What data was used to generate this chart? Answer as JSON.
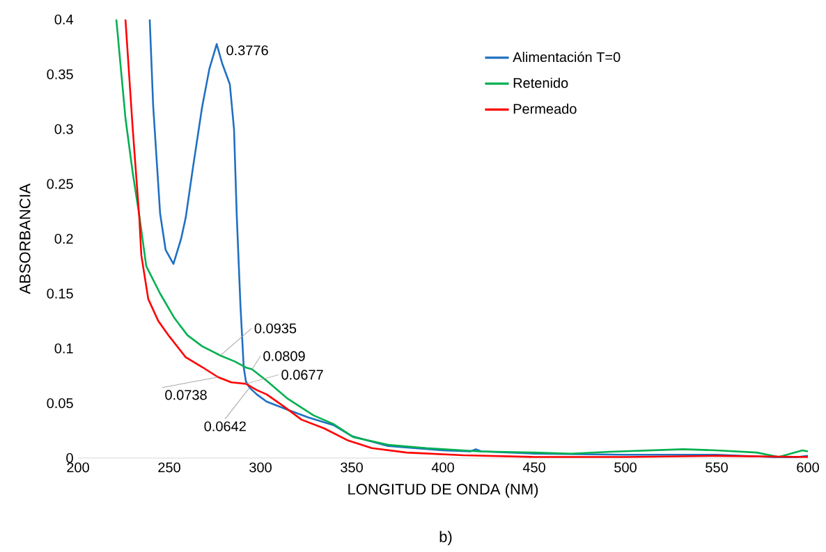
{
  "chart_data": {
    "type": "line",
    "xlabel": "LONGITUD DE ONDA (NM)",
    "ylabel": "ABSORBANCIA",
    "xlim": [
      200,
      600
    ],
    "xticks": [
      200,
      250,
      300,
      350,
      400,
      450,
      500,
      550,
      600
    ],
    "ylim": [
      0,
      0.4
    ],
    "yticks": [
      0,
      0.05,
      0.1,
      0.15,
      0.2,
      0.25,
      0.3,
      0.35,
      0.4
    ],
    "grid": false,
    "legend": "top right",
    "marker": "none",
    "line_style": "solid",
    "series": [
      {
        "name": "Alimentación T=0",
        "color": "#1f70c1",
        "x": [
          239.3,
          241.2,
          245,
          248,
          252.3,
          256.5,
          259,
          263,
          268,
          272,
          276,
          279,
          283.2,
          285.5,
          287,
          289,
          290.8,
          292,
          294,
          298,
          303.4,
          315,
          326.3,
          340,
          350,
          370,
          400,
          415,
          418,
          421,
          450,
          500,
          550,
          580,
          590,
          600
        ],
        "values": [
          0.4,
          0.321,
          0.223,
          0.19,
          0.177,
          0.2,
          0.219,
          0.265,
          0.32,
          0.355,
          0.3776,
          0.36,
          0.341,
          0.3,
          0.221,
          0.14,
          0.083,
          0.07,
          0.0642,
          0.058,
          0.0514,
          0.044,
          0.037,
          0.03,
          0.02,
          0.011,
          0.007,
          0.006,
          0.008,
          0.006,
          0.004,
          0.003,
          0.003,
          0.001,
          0.0,
          0.002
        ]
      },
      {
        "name": "Retenido",
        "color": "#00b050",
        "x": [
          221,
          226,
          230,
          233.6,
          237.4,
          245,
          252.7,
          260,
          268,
          278,
          286,
          292,
          295.4,
          303.4,
          315,
          329,
          340,
          351,
          370,
          391,
          420,
          450,
          470,
          491.6,
          531.7,
          550,
          572,
          584,
          597,
          600
        ],
        "values": [
          0.4,
          0.31,
          0.26,
          0.221,
          0.175,
          0.15,
          0.128,
          0.112,
          0.102,
          0.0935,
          0.088,
          0.0826,
          0.0809,
          0.0705,
          0.054,
          0.039,
          0.031,
          0.019,
          0.012,
          0.009,
          0.006,
          0.005,
          0.004,
          0.0057,
          0.008,
          0.007,
          0.005,
          0.001,
          0.007,
          0.006
        ]
      },
      {
        "name": "Permeado",
        "color": "#ff0000",
        "x": [
          226,
          230,
          233.6,
          234.7,
          238.5,
          244,
          250,
          259,
          268,
          276.7,
          284,
          292,
          298,
          303.4,
          312,
          322.5,
          335,
          348,
          361,
          380,
          411,
          450,
          500,
          550,
          600
        ],
        "values": [
          0.4,
          0.3,
          0.219,
          0.185,
          0.145,
          0.125,
          0.111,
          0.092,
          0.083,
          0.0738,
          0.069,
          0.0677,
          0.062,
          0.058,
          0.048,
          0.035,
          0.027,
          0.016,
          0.009,
          0.005,
          0.0025,
          0.001,
          0.001,
          0.002,
          0.001
        ]
      }
    ],
    "annotations": [
      {
        "text": "0.3776",
        "x": 276,
        "y": 0.3776
      },
      {
        "text": "0.0935",
        "x": 278,
        "y": 0.0935
      },
      {
        "text": "0.0809",
        "x": 295.4,
        "y": 0.0809
      },
      {
        "text": "0.0677",
        "x": 292,
        "y": 0.0677
      },
      {
        "text": "0.0738",
        "x": 276.7,
        "y": 0.0738
      },
      {
        "text": "0.0642",
        "x": 294,
        "y": 0.0642
      },
      "b)"
    ]
  }
}
